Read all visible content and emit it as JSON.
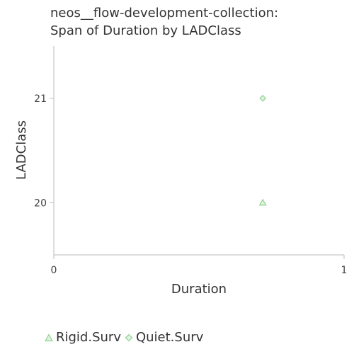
{
  "chart_data": {
    "type": "scatter",
    "title": [
      "neos__flow-development-collection:",
      "Span of Duration by LADClass"
    ],
    "xlabel": "Duration",
    "ylabel": "LADClass",
    "xlim": [
      0,
      1
    ],
    "ylim": [
      19.5,
      21.5
    ],
    "x_ticks": [
      0,
      1
    ],
    "y_ticks": [
      20,
      21
    ],
    "grid": false,
    "legend_position": "bottom-left",
    "series": [
      {
        "name": "Rigid.Surv",
        "marker": "triangle",
        "color": "#8fd18f",
        "points": [
          {
            "x": 0.72,
            "y": 20
          }
        ]
      },
      {
        "name": "Quiet.Surv",
        "marker": "diamond",
        "color": "#8fd18f",
        "points": [
          {
            "x": 0.72,
            "y": 21
          }
        ]
      }
    ]
  }
}
